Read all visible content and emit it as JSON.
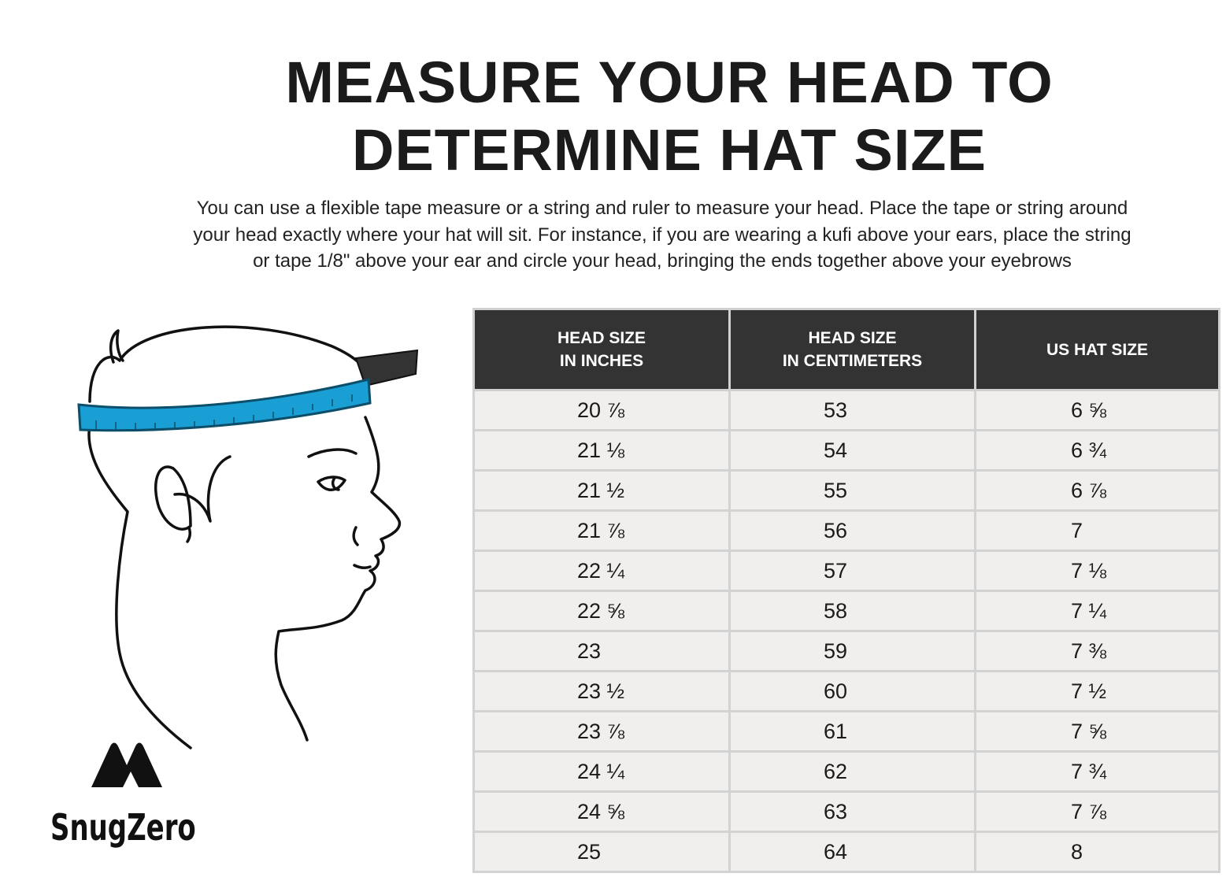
{
  "title": {
    "line1": "MEASURE YOUR HEAD TO",
    "line2": "DETERMINE HAT SIZE"
  },
  "description": {
    "line1": "You can use a flexible tape measure or a string and ruler to measure your head. Place the tape or string around",
    "line2": "your head exactly where your hat will sit. For instance, if you are wearing a kufi above your ears, place the string",
    "line3": "or tape 1/8\" above your ear and circle your head, bringing the ends together above your eyebrows"
  },
  "colors": {
    "tape_blue": "#1a9fd4",
    "header_bg": "#333333",
    "row_bg": "#f1efed"
  },
  "logo": {
    "text": "SnugZero",
    "icon": "twin-peaks-mountain-icon"
  },
  "table": {
    "headers": [
      "HEAD SIZE\nIN INCHES",
      "HEAD SIZE\nIN CENTIMETERS",
      "US HAT SIZE"
    ],
    "rows": [
      [
        "20 ⅞",
        "53",
        "6 ⅝"
      ],
      [
        "21 ⅛",
        "54",
        "6 ¾"
      ],
      [
        "21 ½",
        "55",
        "6 ⅞"
      ],
      [
        "21 ⅞",
        "56",
        "7"
      ],
      [
        "22 ¼",
        "57",
        "7 ⅛"
      ],
      [
        "22 ⅝",
        "58",
        "7 ¼"
      ],
      [
        "23",
        "59",
        "7 ⅜"
      ],
      [
        "23 ½",
        "60",
        "7 ½"
      ],
      [
        "23 ⅞",
        "61",
        "7 ⅝"
      ],
      [
        "24 ¼",
        "62",
        "7 ¾"
      ],
      [
        "24 ⅝",
        "63",
        "7 ⅞"
      ],
      [
        "25",
        "64",
        "8"
      ]
    ]
  }
}
